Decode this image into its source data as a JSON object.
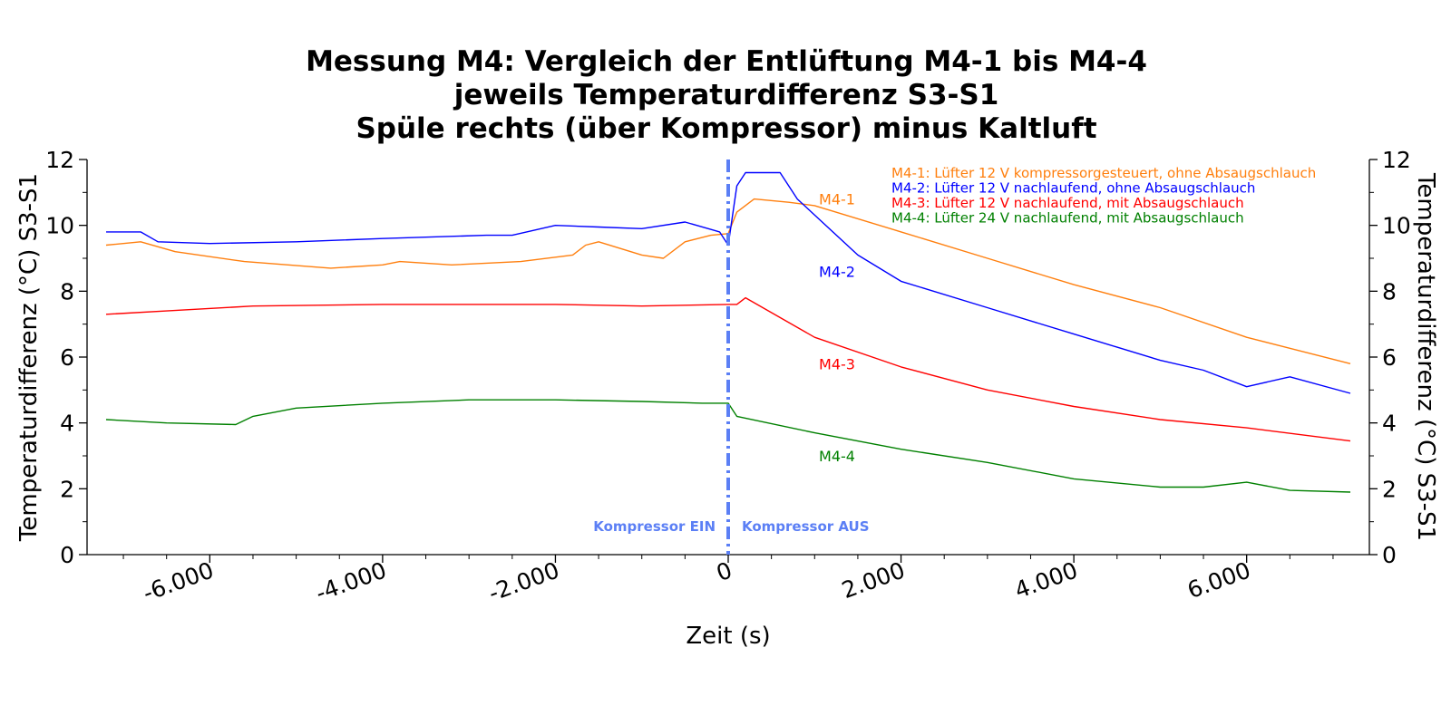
{
  "chart_data": {
    "type": "line",
    "title_lines": [
      "Messung M4: Vergleich der Entlüftung M4-1 bis M4-4",
      "jeweils Temperaturdifferenz S3-S1",
      "Spüle rechts (über Kompressor) minus Kaltluft"
    ],
    "xlabel": "Zeit (s)",
    "ylabel": "Temperaturdifferenz (°C) S3-S1",
    "ylabel_right": "Temperaturdifferenz (°C) S3-S1",
    "xlim": [
      -7200,
      7200
    ],
    "ylim": [
      0,
      12
    ],
    "x_ticks": [
      {
        "v": -6000,
        "label": "-6.000"
      },
      {
        "v": -4000,
        "label": "-4.000"
      },
      {
        "v": -2000,
        "label": "-2.000"
      },
      {
        "v": 0,
        "label": "0"
      },
      {
        "v": 2000,
        "label": "2.000"
      },
      {
        "v": 4000,
        "label": "4.000"
      },
      {
        "v": 6000,
        "label": "6.000"
      }
    ],
    "y_ticks": [
      {
        "v": 0,
        "label": "0"
      },
      {
        "v": 2,
        "label": "2"
      },
      {
        "v": 4,
        "label": "4"
      },
      {
        "v": 6,
        "label": "6"
      },
      {
        "v": 8,
        "label": "8"
      },
      {
        "v": 10,
        "label": "10"
      },
      {
        "v": 12,
        "label": "12"
      }
    ],
    "grid": false,
    "legend_position": "top-right",
    "vline": {
      "x": 0,
      "color": "#5b7ff5"
    },
    "annotations": {
      "left": "Kompressor EIN",
      "right": "Kompressor AUS",
      "color": "#5b7ff5"
    },
    "series": [
      {
        "name": "M4-1",
        "legend": "M4-1: Lüfter 12 V kompressorgesteuert, ohne Absaugschlauch",
        "color": "#ff7f0e",
        "label": {
          "x": 1050,
          "y": 10.8
        },
        "x": [
          -7200,
          -6800,
          -6400,
          -5600,
          -4600,
          -4000,
          -3800,
          -3200,
          -2400,
          -1800,
          -1650,
          -1500,
          -1000,
          -750,
          -500,
          -200,
          0,
          100,
          300,
          700,
          1000,
          2000,
          3000,
          4000,
          5000,
          6000,
          7200
        ],
        "y": [
          9.4,
          9.5,
          9.2,
          8.9,
          8.7,
          8.8,
          8.9,
          8.8,
          8.9,
          9.1,
          9.4,
          9.5,
          9.1,
          9.0,
          9.5,
          9.7,
          9.75,
          10.4,
          10.8,
          10.7,
          10.6,
          9.8,
          9.0,
          8.2,
          7.5,
          6.6,
          5.8
        ]
      },
      {
        "name": "M4-2",
        "legend": "M4-2: Lüfter 12 V nachlaufend, ohne Absaugschlauch",
        "color": "#0000ff",
        "label": {
          "x": 1050,
          "y": 8.6
        },
        "x": [
          -7200,
          -6800,
          -6600,
          -6000,
          -5000,
          -4000,
          -2800,
          -2500,
          -2000,
          -1500,
          -1000,
          -500,
          -100,
          0,
          100,
          200,
          600,
          800,
          1500,
          2000,
          3000,
          4000,
          4500,
          5000,
          5500,
          6000,
          6500,
          7200
        ],
        "y": [
          9.8,
          9.8,
          9.5,
          9.45,
          9.5,
          9.6,
          9.7,
          9.7,
          10.0,
          9.95,
          9.9,
          10.1,
          9.8,
          9.4,
          11.2,
          11.6,
          11.6,
          10.8,
          9.1,
          8.3,
          7.5,
          6.7,
          6.3,
          5.9,
          5.6,
          5.1,
          5.4,
          4.9
        ]
      },
      {
        "name": "M4-3",
        "legend": "M4-3: Lüfter 12 V nachlaufend, mit Absaugschlauch",
        "color": "#ff0000",
        "label": {
          "x": 1050,
          "y": 5.8
        },
        "x": [
          -7200,
          -6500,
          -5500,
          -4000,
          -2000,
          -1000,
          0,
          100,
          200,
          1000,
          2000,
          3000,
          4000,
          5000,
          6000,
          7200
        ],
        "y": [
          7.3,
          7.4,
          7.55,
          7.6,
          7.6,
          7.55,
          7.6,
          7.6,
          7.8,
          6.6,
          5.7,
          5.0,
          4.5,
          4.1,
          3.85,
          3.45
        ]
      },
      {
        "name": "M4-4",
        "legend": "M4-4: Lüfter 24 V nachlaufend, mit Absaugschlauch",
        "color": "#008000",
        "label": {
          "x": 1050,
          "y": 3.0
        },
        "x": [
          -7200,
          -6500,
          -5700,
          -5500,
          -5000,
          -4000,
          -3000,
          -2000,
          -1000,
          -300,
          0,
          100,
          1000,
          2000,
          3000,
          4000,
          5000,
          5500,
          6000,
          6500,
          7200
        ],
        "y": [
          4.1,
          4.0,
          3.95,
          4.2,
          4.45,
          4.6,
          4.7,
          4.7,
          4.65,
          4.6,
          4.6,
          4.2,
          3.7,
          3.2,
          2.8,
          2.3,
          2.05,
          2.05,
          2.2,
          1.95,
          1.9
        ]
      }
    ]
  }
}
